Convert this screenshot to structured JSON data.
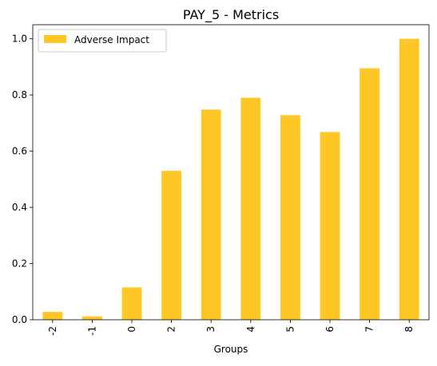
{
  "chart_data": {
    "type": "bar",
    "title": "PAY_5 - Metrics",
    "xlabel": "Groups",
    "ylabel": "",
    "categories": [
      "-2",
      "-1",
      "0",
      "2",
      "3",
      "4",
      "5",
      "6",
      "7",
      "8"
    ],
    "series": [
      {
        "name": "Adverse Impact",
        "color": "#ffc726",
        "values": [
          0.028,
          0.012,
          0.115,
          0.53,
          0.748,
          0.79,
          0.728,
          0.668,
          0.895,
          1.0
        ]
      }
    ],
    "ylim": [
      0,
      1.05
    ],
    "yticks": [
      0.0,
      0.2,
      0.4,
      0.6,
      0.8,
      1.0
    ],
    "ytick_labels": [
      "0.0",
      "0.2",
      "0.4",
      "0.6",
      "0.8",
      "1.0"
    ],
    "legend_position": "top-left",
    "grid": false
  }
}
